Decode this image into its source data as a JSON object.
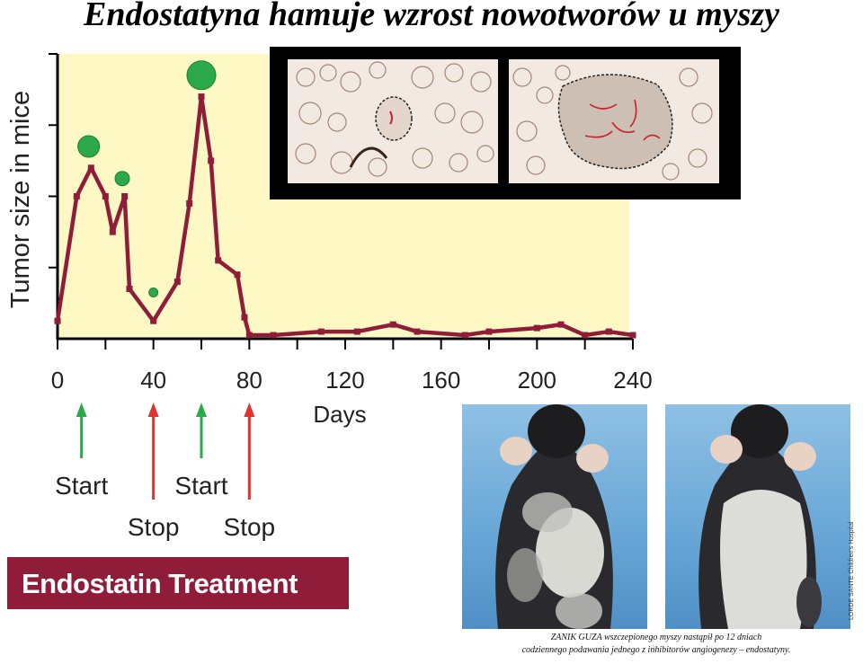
{
  "title": "Endostatyna hamuje wzrost nowotworów u myszy",
  "chart_data": {
    "type": "line",
    "ylabel": "Tumor size in mice",
    "xlabel": "Days",
    "x_ticks": [
      0,
      40,
      80,
      120,
      160,
      200,
      240
    ],
    "x_tick_labels": [
      "0",
      "40",
      "80",
      "120",
      "160",
      "200",
      "240"
    ],
    "xlim": [
      0,
      240
    ],
    "ylim": [
      0,
      4
    ],
    "y_scale_labels": "none",
    "background_color": "#fdf8c4",
    "line_color": "#8f1d3a",
    "marker_color": "#2aa84a",
    "series": [
      {
        "x": [
          0,
          8,
          14,
          20,
          23,
          28,
          30,
          40,
          50,
          55,
          60,
          64,
          67,
          75,
          78,
          80,
          90,
          110,
          125,
          140,
          150,
          170,
          180,
          200,
          210,
          220,
          230,
          240
        ],
        "values": [
          0.25,
          2.0,
          2.4,
          2.0,
          1.5,
          2.0,
          0.7,
          0.25,
          0.8,
          1.9,
          3.4,
          2.5,
          1.1,
          0.9,
          0.3,
          0.05,
          0.05,
          0.1,
          0.1,
          0.2,
          0.1,
          0.05,
          0.1,
          0.15,
          0.2,
          0.05,
          0.1,
          0.05
        ]
      }
    ],
    "highlight_points": [
      {
        "x": 13,
        "y": 2.7,
        "size": "medium"
      },
      {
        "x": 27,
        "y": 2.25,
        "size": "small"
      },
      {
        "x": 40,
        "y": 0.65,
        "size": "tiny"
      },
      {
        "x": 60,
        "y": 3.7,
        "size": "large"
      }
    ],
    "treatment_arrows": [
      {
        "day": 10,
        "label": "Start",
        "kind": "start",
        "color": "#2aa84a"
      },
      {
        "day": 40,
        "label": "Stop",
        "kind": "stop",
        "color": "#e0322e"
      },
      {
        "day": 60,
        "label": "Start",
        "kind": "start",
        "color": "#2aa84a"
      },
      {
        "day": 80,
        "label": "Stop",
        "kind": "stop",
        "color": "#e0322e"
      }
    ]
  },
  "banner_label": "Endostatin Treatment",
  "caption": {
    "line1": "ZANIK GUZA wszczepionego myszy nastąpił po 12 dniach",
    "line2": "codziennego podawania jednego z inhibitorów angiogenezy – endostatyny."
  },
  "photo_credit": "LORDE SANTE Children's Hospital"
}
